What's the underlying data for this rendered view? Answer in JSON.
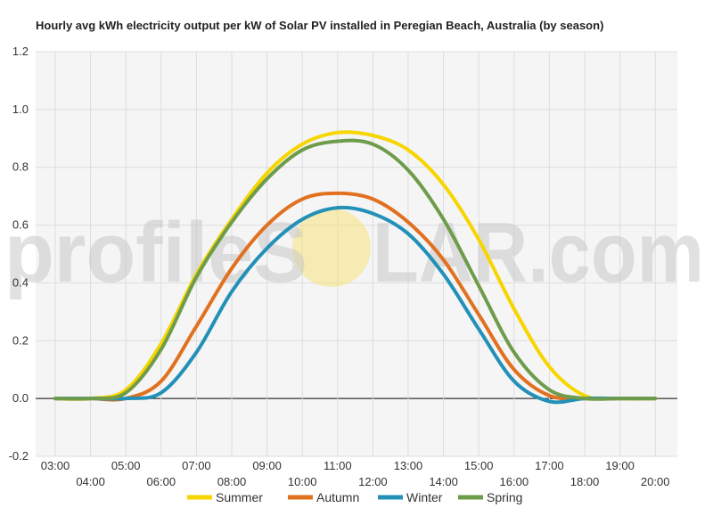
{
  "chart_data": {
    "type": "line",
    "title": "Hourly avg kWh electricity output per kW of Solar PV installed in Peregian Beach, Australia (by season)",
    "xlabel": "",
    "ylabel": "",
    "ylim": [
      -0.2,
      1.2
    ],
    "yticks": [
      "-0.2",
      "0.0",
      "0.2",
      "0.4",
      "0.6",
      "0.8",
      "1.0",
      "1.2"
    ],
    "x": [
      "03:00",
      "04:00",
      "05:00",
      "06:00",
      "07:00",
      "08:00",
      "09:00",
      "10:00",
      "11:00",
      "12:00",
      "13:00",
      "14:00",
      "15:00",
      "16:00",
      "17:00",
      "18:00",
      "19:00",
      "20:00"
    ],
    "grid": true,
    "legend": "bottom",
    "series": [
      {
        "name": "Summer",
        "color": "#f6d500",
        "values": [
          0.0,
          0.0,
          0.03,
          0.19,
          0.43,
          0.62,
          0.78,
          0.88,
          0.92,
          0.91,
          0.86,
          0.74,
          0.55,
          0.31,
          0.11,
          0.01,
          0.0,
          0.0
        ]
      },
      {
        "name": "Autumn",
        "color": "#e1701f",
        "values": [
          0.0,
          0.0,
          0.0,
          0.06,
          0.25,
          0.45,
          0.6,
          0.69,
          0.71,
          0.69,
          0.61,
          0.48,
          0.29,
          0.1,
          0.01,
          0.0,
          0.0,
          0.0
        ]
      },
      {
        "name": "Winter",
        "color": "#2390b8",
        "values": [
          0.0,
          0.0,
          0.0,
          0.02,
          0.16,
          0.37,
          0.52,
          0.62,
          0.66,
          0.64,
          0.57,
          0.43,
          0.24,
          0.06,
          -0.01,
          0.0,
          0.0,
          0.0
        ]
      },
      {
        "name": "Spring",
        "color": "#6e9c4b",
        "values": [
          0.0,
          0.0,
          0.02,
          0.17,
          0.42,
          0.61,
          0.76,
          0.86,
          0.89,
          0.88,
          0.79,
          0.62,
          0.39,
          0.16,
          0.03,
          0.0,
          0.0,
          0.0
        ]
      }
    ]
  },
  "watermark": {
    "text_left": "profileS",
    "text_right": "LAR.com",
    "sun_color": "#f5e27a"
  }
}
